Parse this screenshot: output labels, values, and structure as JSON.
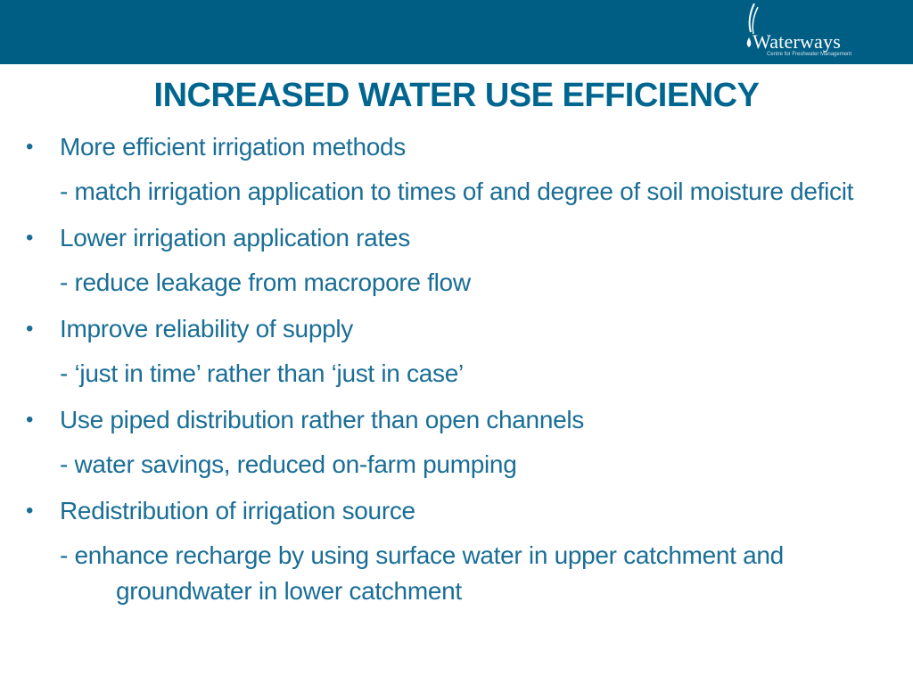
{
  "header": {
    "logo": {
      "name": "Waterways",
      "tagline": "Centre for Freshwater Management"
    }
  },
  "slide": {
    "title": "INCREASED WATER USE EFFICIENCY",
    "items": [
      {
        "bullet": "More efficient irrigation methods",
        "detail": "- match irrigation application to times of and degree of soil moisture deficit"
      },
      {
        "bullet": "Lower irrigation application rates",
        "detail": "- reduce leakage from macropore flow"
      },
      {
        "bullet": "Improve reliability of supply",
        "detail": "- ‘just in time’ rather than ‘just in case’"
      },
      {
        "bullet": "Use piped distribution rather than open channels",
        "detail": "- water savings, reduced on-farm pumping"
      },
      {
        "bullet": "Redistribution of irrigation source",
        "detail": "- enhance recharge by using surface water in upper catchment and groundwater in lower catchment"
      }
    ]
  },
  "colors": {
    "header_bar": "#005d84",
    "title": "#00668f",
    "body_text": "#1a6e96"
  }
}
